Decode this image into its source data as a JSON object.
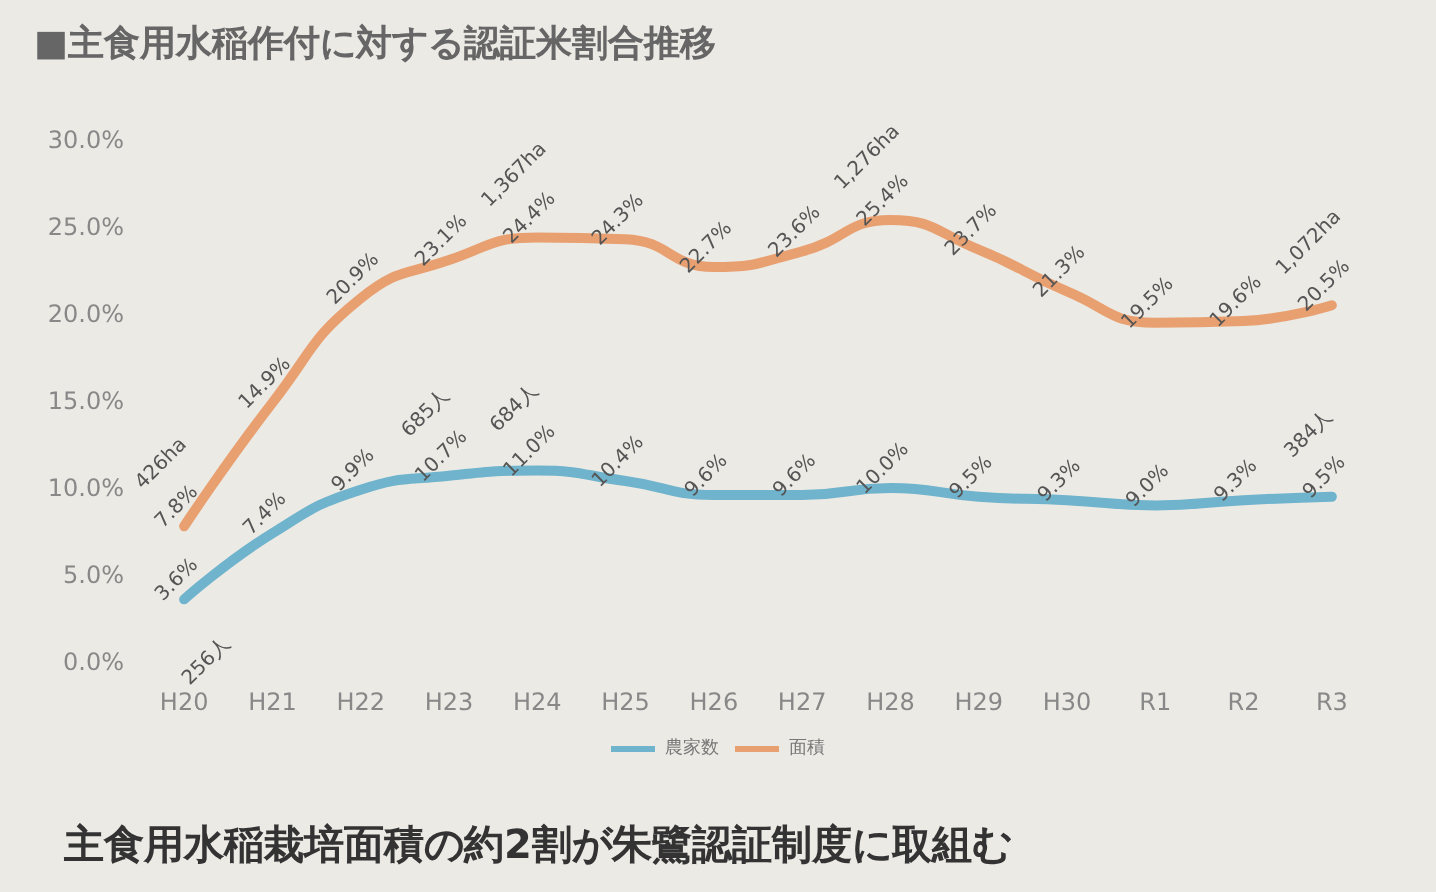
{
  "chart_data": {
    "type": "line",
    "title": "■主食用水稲作付に対する認証米割合推移",
    "categories": [
      "H20",
      "H21",
      "H22",
      "H23",
      "H24",
      "H25",
      "H26",
      "H27",
      "H28",
      "H29",
      "H30",
      "R1",
      "R2",
      "R3"
    ],
    "series": [
      {
        "name": "農家数",
        "color": "#6fb3cc",
        "values": [
          3.6,
          7.4,
          9.9,
          10.7,
          11.0,
          10.4,
          9.6,
          9.6,
          10.0,
          9.5,
          9.3,
          9.0,
          9.3,
          9.5
        ],
        "value_labels": [
          "3.6%",
          "7.4%",
          "9.9%",
          "10.7%",
          "11.0%",
          "10.4%",
          "9.6%",
          "9.6%",
          "10.0%",
          "9.5%",
          "9.3%",
          "9.0%",
          "9.3%",
          "9.5%"
        ]
      },
      {
        "name": "面積",
        "color": "#e9a070",
        "values": [
          7.8,
          14.9,
          20.9,
          23.1,
          24.4,
          24.3,
          22.7,
          23.6,
          25.4,
          23.7,
          21.3,
          19.5,
          19.6,
          20.5
        ],
        "value_labels": [
          "7.8%",
          "14.9%",
          "20.9%",
          "23.1%",
          "24.4%",
          "24.3%",
          "22.7%",
          "23.6%",
          "25.4%",
          "23.7%",
          "21.3%",
          "19.5%",
          "19.6%",
          "20.5%"
        ]
      }
    ],
    "ylim": [
      0,
      30
    ],
    "yticks": [
      {
        "value": 0,
        "label": "0.0%"
      },
      {
        "value": 5,
        "label": "5.0%"
      },
      {
        "value": 10,
        "label": "10.0%"
      },
      {
        "value": 15,
        "label": "15.0%"
      },
      {
        "value": 20,
        "label": "20.0%"
      },
      {
        "value": 25,
        "label": "25.0%"
      },
      {
        "value": 30,
        "label": "30.0%"
      }
    ],
    "annotations": [
      {
        "text": "426ha",
        "x": "H20",
        "y": 7.8
      },
      {
        "text": "1,367ha",
        "x": "H24",
        "y": 24.4
      },
      {
        "text": "1,276ha",
        "x": "H28",
        "y": 25.4
      },
      {
        "text": "1,072ha",
        "x": "R3",
        "y": 20.5
      },
      {
        "text": "256人",
        "x": "H20",
        "y": 3.6
      },
      {
        "text": "685人",
        "x": "H23",
        "y": 10.7
      },
      {
        "text": "684人",
        "x": "H24",
        "y": 11.0
      },
      {
        "text": "384人",
        "x": "R3",
        "y": 9.5
      },
      "主食用水稲栽培面積の約2割が朱鷺認証制度に取組む"
    ],
    "legend": "bottom",
    "grid": false,
    "marker": "none",
    "line_style": "solid"
  }
}
